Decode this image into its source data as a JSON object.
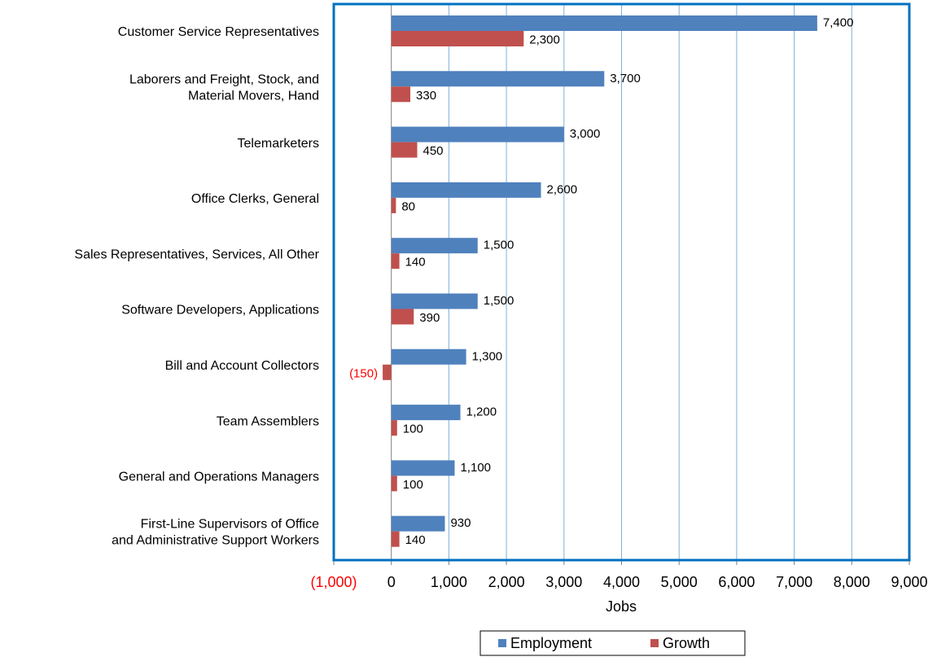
{
  "chart_data": {
    "type": "bar",
    "orientation": "horizontal",
    "categories": [
      "Customer Service Representatives",
      "Laborers and Freight, Stock, and\nMaterial Movers, Hand",
      "Telemarketers",
      "Office Clerks, General",
      "Sales Representatives, Services, All Other",
      "Software Developers, Applications",
      "Bill and Account Collectors",
      "Team Assemblers",
      "General and Operations Managers",
      "First-Line Supervisors of Office\nand Administrative Support Workers"
    ],
    "series": [
      {
        "name": "Employment",
        "color": "#4f81bd",
        "values": [
          7400,
          3700,
          3000,
          2600,
          1500,
          1500,
          1300,
          1200,
          1100,
          930
        ],
        "value_labels": [
          "7,400",
          "3,700",
          "3,000",
          "2,600",
          "1,500",
          "1,500",
          "1,300",
          "1,200",
          "1,100",
          "930"
        ]
      },
      {
        "name": "Growth",
        "color": "#c0504d",
        "values": [
          2300,
          330,
          450,
          80,
          140,
          390,
          -150,
          100,
          100,
          140
        ],
        "value_labels": [
          "2,300",
          "330",
          "450",
          "80",
          "140",
          "390",
          "(150)",
          "100",
          "100",
          "140"
        ]
      }
    ],
    "xlabel": "Jobs",
    "xlim": [
      -1000,
      9000
    ],
    "xticks": [
      {
        "value": -1000,
        "label": "(1,000)"
      },
      0,
      {
        "value": 1000,
        "label": "1,000"
      },
      {
        "value": 2000,
        "label": "2,000"
      },
      {
        "value": 3000,
        "label": "3,000"
      },
      {
        "value": 4000,
        "label": "4,000"
      },
      {
        "value": 5000,
        "label": "5,000"
      },
      {
        "value": 6000,
        "label": "6,000"
      },
      {
        "value": 7000,
        "label": "7,000"
      },
      {
        "value": 8000,
        "label": "8,000"
      },
      {
        "value": 9000,
        "label": "9,000"
      }
    ],
    "grid": true,
    "legend": "bottom"
  }
}
